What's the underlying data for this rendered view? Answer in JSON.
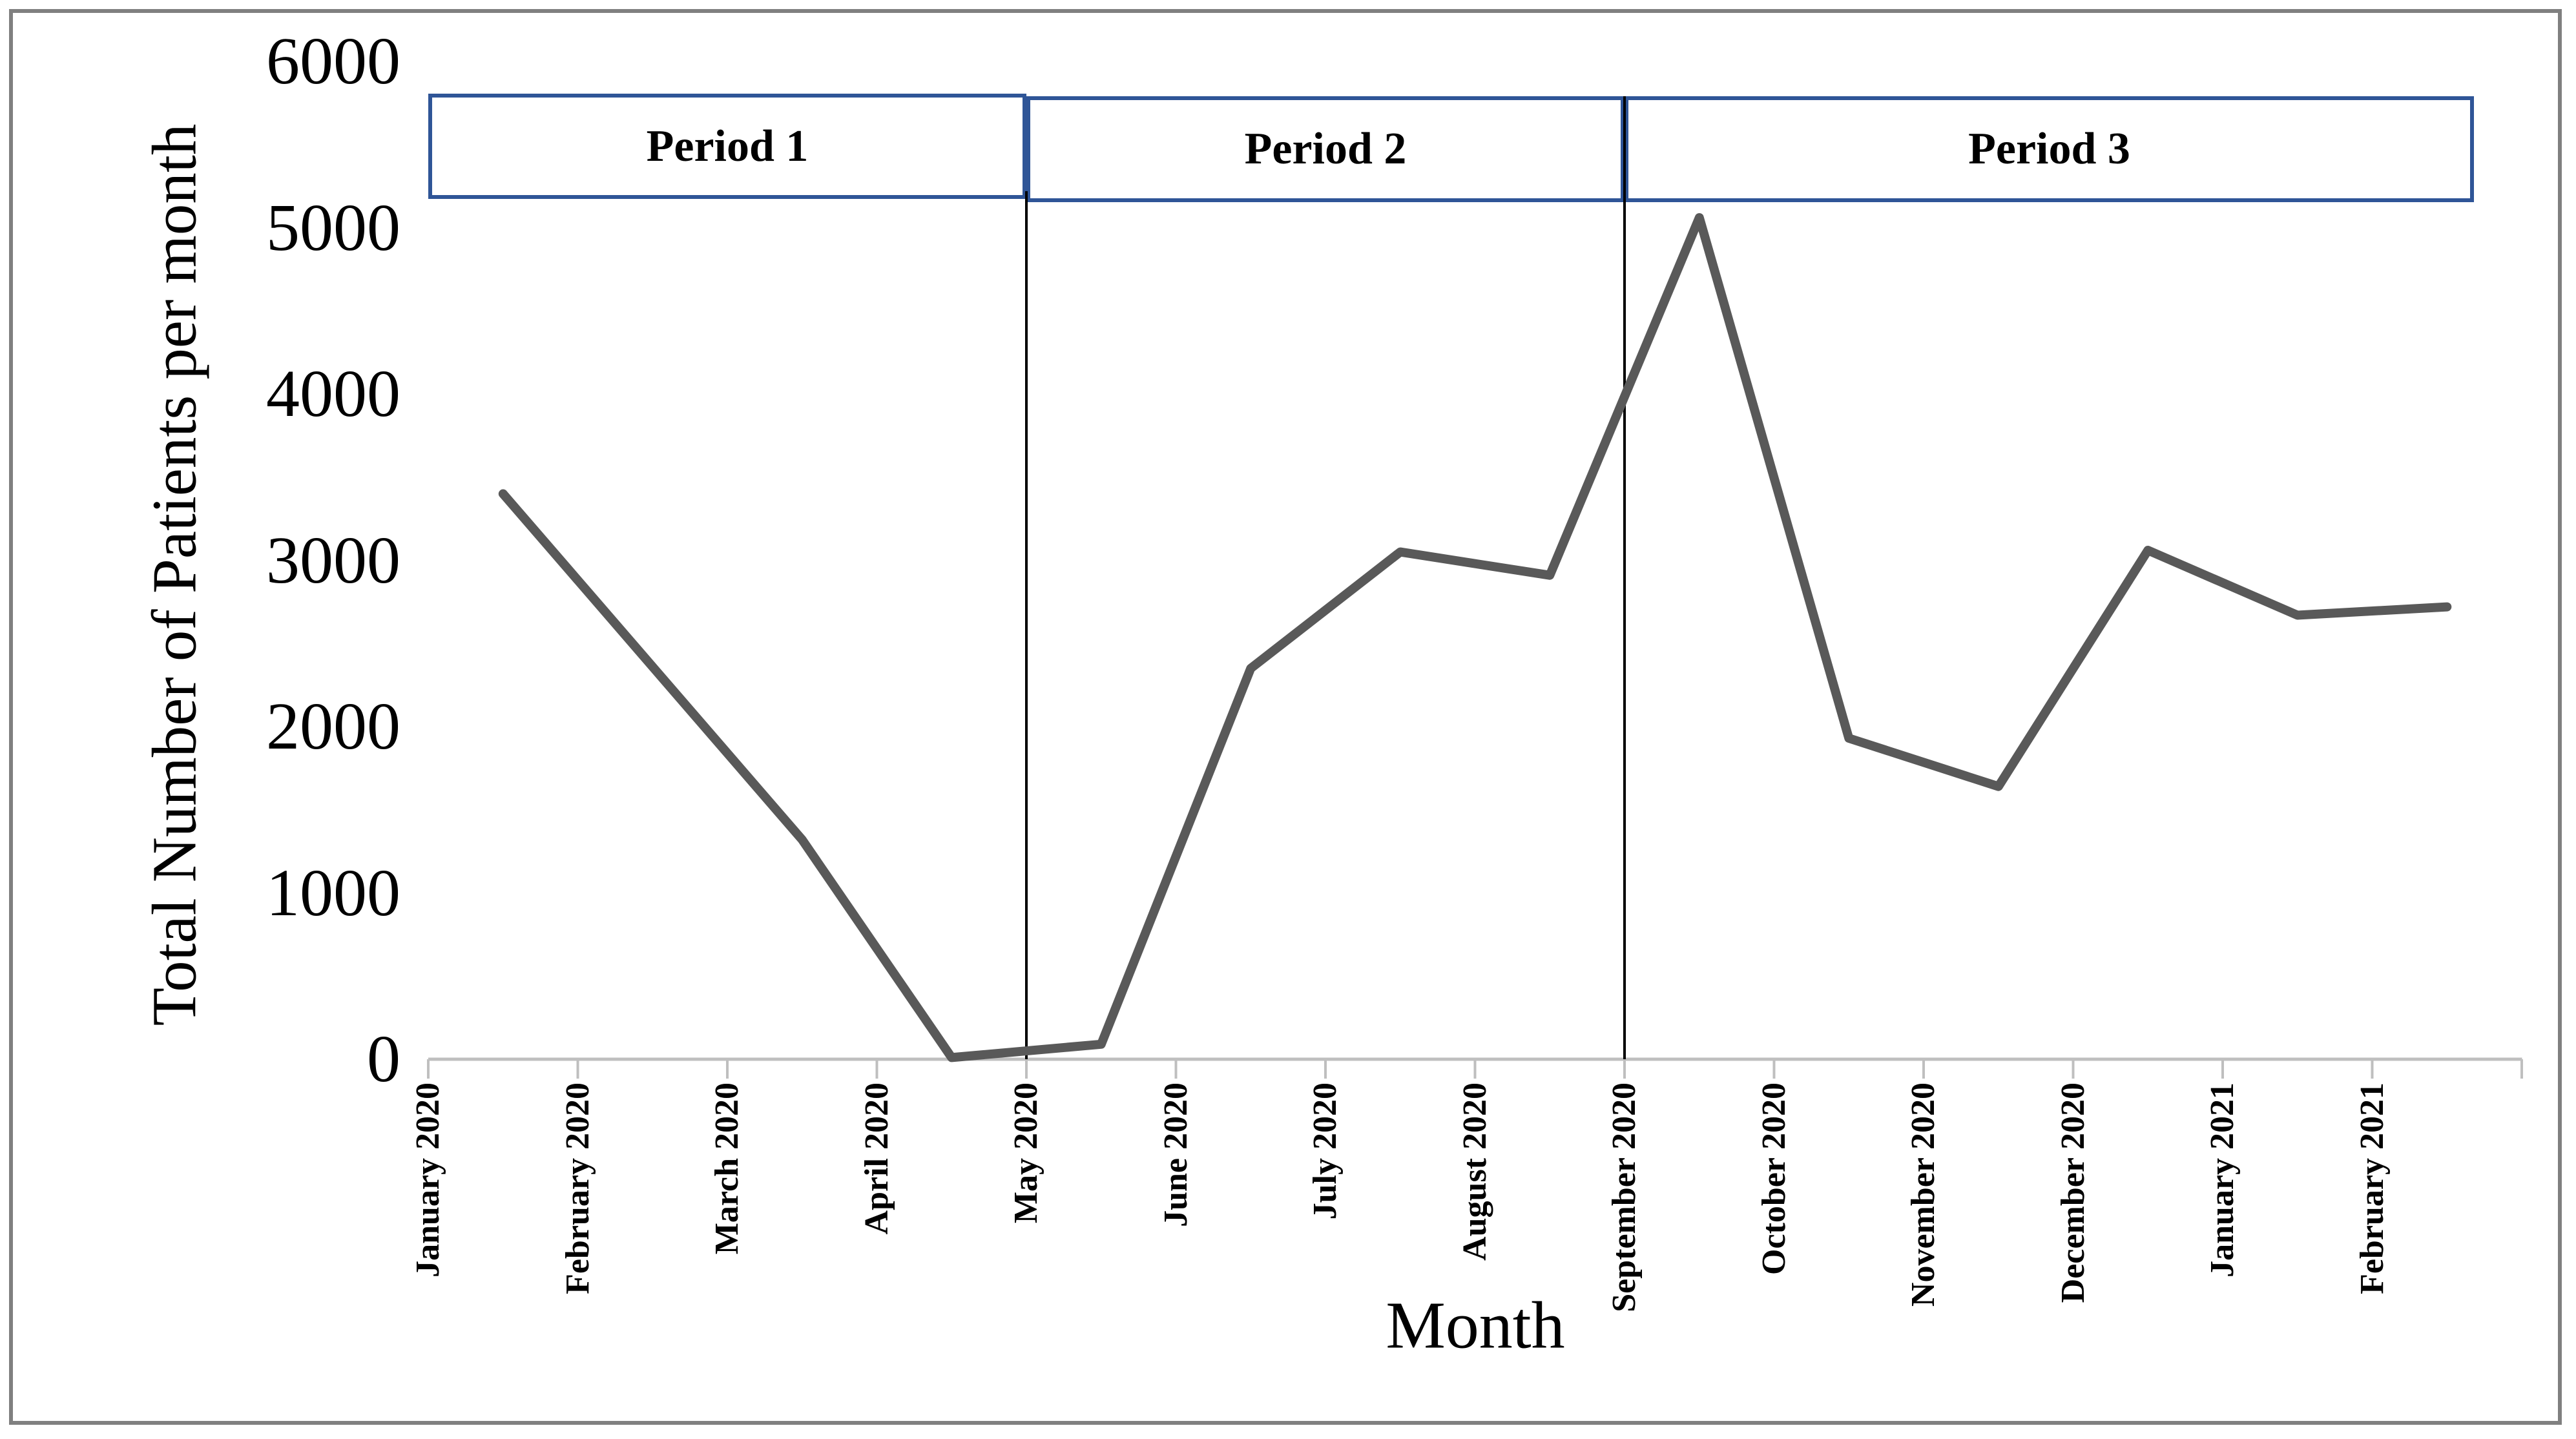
{
  "figure": {
    "y_axis": {
      "title": "Total Number of Patients per month",
      "tick_labels": [
        "0",
        "1000",
        "2000",
        "3000",
        "4000",
        "5000",
        "6000"
      ]
    },
    "x_axis": {
      "title": "Month",
      "tick_labels": [
        "January 2020",
        "February 2020",
        "March 2020",
        "April 2020",
        "May 2020",
        "June 2020",
        "July 2020",
        "August 2020",
        "September 2020",
        "October 2020",
        "November 2020",
        "December 2020",
        "January 2021",
        "February 2021"
      ]
    },
    "periods": [
      {
        "label": "Period 1"
      },
      {
        "label": "Period 2"
      },
      {
        "label": "Period 3"
      }
    ]
  },
  "chart_data": {
    "type": "line",
    "title": "",
    "xlabel": "Month",
    "ylabel": "Total Number of Patients per month",
    "categories": [
      "January 2020",
      "February 2020",
      "March 2020",
      "April 2020",
      "May 2020",
      "June 2020",
      "July 2020",
      "August 2020",
      "September 2020",
      "October 2020",
      "November 2020",
      "December 2020",
      "January 2021",
      "February 2021"
    ],
    "series": [
      {
        "name": "Total Number of Patients per month",
        "values": [
          3400,
          2360,
          1320,
          10,
          90,
          2350,
          3050,
          2910,
          5060,
          1930,
          1640,
          3060,
          2670,
          2720
        ]
      }
    ],
    "ylim": [
      0,
      6000
    ],
    "ytick_step": 1000,
    "grid": false,
    "legend": false,
    "annotations": {
      "period_bands": [
        {
          "label": "Period 1",
          "covers": "January 2020 - April 2020"
        },
        {
          "label": "Period 2",
          "covers": "May 2020 - August 2020"
        },
        {
          "label": "Period 3",
          "covers": "September 2020 - February 2021"
        }
      ],
      "dividers_at": [
        "May 2020",
        "September 2020"
      ]
    }
  },
  "colors": {
    "line": "#595959",
    "axis": "#BFBFBF",
    "period_box_border": "#2F5597",
    "divider": "#000000",
    "frame": "#808080",
    "text": "#000000"
  }
}
